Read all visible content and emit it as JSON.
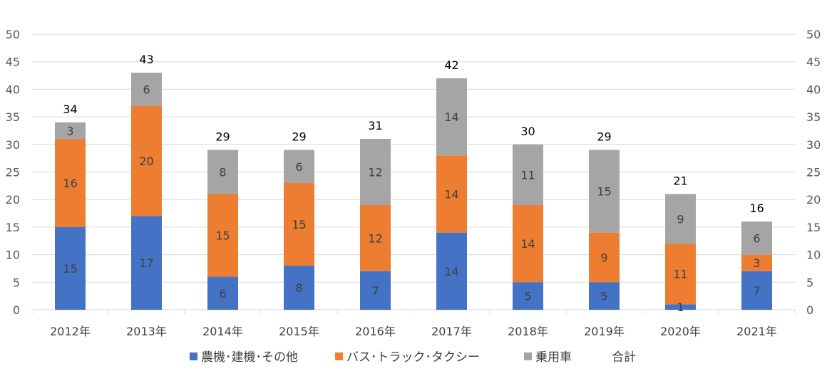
{
  "chart_data": {
    "type": "bar",
    "stacked": true,
    "categories": [
      "2012年",
      "2013年",
      "2014年",
      "2015年",
      "2016年",
      "2017年",
      "2018年",
      "2019年",
      "2020年",
      "2021年"
    ],
    "series": [
      {
        "name": "農機･建機･その他",
        "color": "#4472C4",
        "values": [
          15,
          17,
          6,
          8,
          7,
          14,
          5,
          5,
          1,
          7
        ]
      },
      {
        "name": "バス･トラック･タクシー",
        "color": "#ED7D31",
        "values": [
          16,
          20,
          15,
          15,
          12,
          14,
          14,
          9,
          11,
          3
        ]
      },
      {
        "name": "乗用車",
        "color": "#A5A5A5",
        "values": [
          3,
          6,
          8,
          6,
          12,
          14,
          11,
          15,
          9,
          6
        ]
      }
    ],
    "totals": {
      "name": "合計",
      "values": [
        34,
        43,
        29,
        29,
        31,
        42,
        30,
        29,
        21,
        16
      ]
    },
    "yticks": [
      "0",
      "5",
      "10",
      "15",
      "20",
      "25",
      "30",
      "35",
      "40",
      "45",
      "50"
    ],
    "ylim": [
      0,
      50
    ],
    "grid": true,
    "secondary_axis": true,
    "legend_position": "bottom"
  }
}
